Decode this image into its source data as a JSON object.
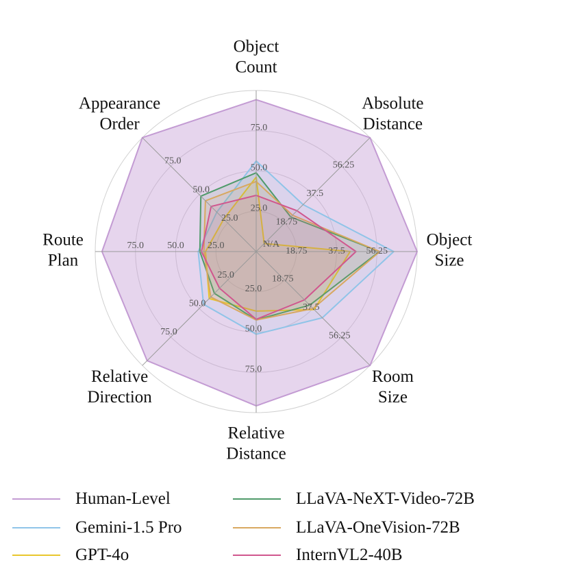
{
  "chart_data": {
    "type": "radar",
    "axes": [
      {
        "label": [
          "Object",
          "Count"
        ],
        "ticks": [
          "25.0",
          "50.0",
          "75.0"
        ],
        "max": 100
      },
      {
        "label": [
          "Absolute",
          "Distance"
        ],
        "ticks": [
          "18.75",
          "37.5",
          "56.25"
        ],
        "max": 75
      },
      {
        "label": [
          "Object",
          "Size"
        ],
        "ticks": [
          "18.75",
          "37.5",
          "56.25"
        ],
        "max": 75
      },
      {
        "label": [
          "Room",
          "Size"
        ],
        "ticks": [
          "18.75",
          "37.5",
          "56.25"
        ],
        "max": 75
      },
      {
        "label": [
          "Relative",
          "Distance"
        ],
        "ticks": [
          "25.0",
          "50.0",
          "75.0"
        ],
        "max": 100
      },
      {
        "label": [
          "Relative",
          "Direction"
        ],
        "ticks": [
          "25.0",
          "50.0",
          "75.0"
        ],
        "max": 100
      },
      {
        "label": [
          "Route",
          "Plan"
        ],
        "ticks": [
          "25.0",
          "50.0",
          "75.0"
        ],
        "max": 100
      },
      {
        "label": [
          "Appearance",
          "Order"
        ],
        "ticks": [
          "25.0",
          "50.0",
          "75.0"
        ],
        "max": 100
      }
    ],
    "center_label": "N/A",
    "series": [
      {
        "name": "Human-Level",
        "color": "#c39bd3",
        "fill_opacity": 0.42,
        "values": [
          94.3,
          100,
          75,
          75,
          95.8,
          95.8,
          95.8,
          100
        ]
      },
      {
        "name": "Gemini-1.5 Pro",
        "color": "#8fc4e8",
        "fill_opacity": 0.12,
        "values": [
          56.2,
          30.9,
          64.1,
          43.6,
          51.3,
          46.3,
          36.0,
          34.6
        ]
      },
      {
        "name": "GPT-4o",
        "color": "#e9c62c",
        "fill_opacity": 0.12,
        "values": [
          46.2,
          5.3,
          43.8,
          38.2,
          37.0,
          41.3,
          31.5,
          28.5
        ]
      },
      {
        "name": "LLaVA-NeXT-Video-72B",
        "color": "#4f9a6a",
        "fill_opacity": 0.12,
        "values": [
          48.9,
          22.8,
          57.4,
          35.3,
          42.4,
          36.7,
          35.0,
          48.6
        ]
      },
      {
        "name": "LLaVA-OneVision-72B",
        "color": "#d8a860",
        "fill_opacity": 0.12,
        "values": [
          43.5,
          23.9,
          57.6,
          37.5,
          42.5,
          39.9,
          32.5,
          44.6
        ]
      },
      {
        "name": "InternVL2-40B",
        "color": "#d0568e",
        "fill_opacity": 0.12,
        "values": [
          34.9,
          26.9,
          46.5,
          31.8,
          42.1,
          32.2,
          34.0,
          39.6
        ]
      }
    ],
    "legend_placement": "bottom",
    "grid": true
  }
}
